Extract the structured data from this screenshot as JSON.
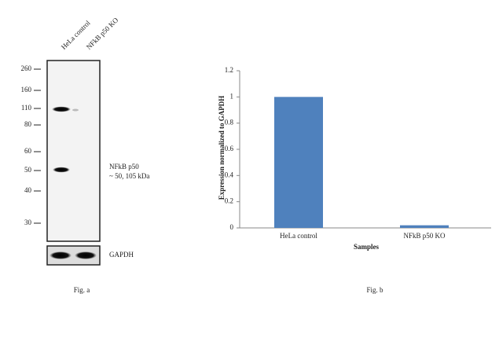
{
  "blot": {
    "lanes": [
      "HeLa control",
      "NFkB p50 KO"
    ],
    "markers": [
      260,
      160,
      110,
      80,
      60,
      50,
      40,
      30
    ],
    "band_label": "NFkB p50",
    "band_size": "~ 50, 105 kDa",
    "loading_control": "GAPDH",
    "caption": "Fig. a"
  },
  "chart_data": {
    "type": "bar",
    "caption": "Fig. b",
    "x_label": "Samples",
    "y_label": "Expression normalized to GAPDH",
    "categories": [
      "HeLa control",
      "NFkB p50 KO"
    ],
    "values": [
      1,
      0.02
    ],
    "color": "#4f81bd",
    "ylim": [
      0,
      1.2
    ],
    "yticks": [
      0,
      0.2,
      0.4,
      0.6,
      0.8,
      1,
      1.2
    ]
  }
}
